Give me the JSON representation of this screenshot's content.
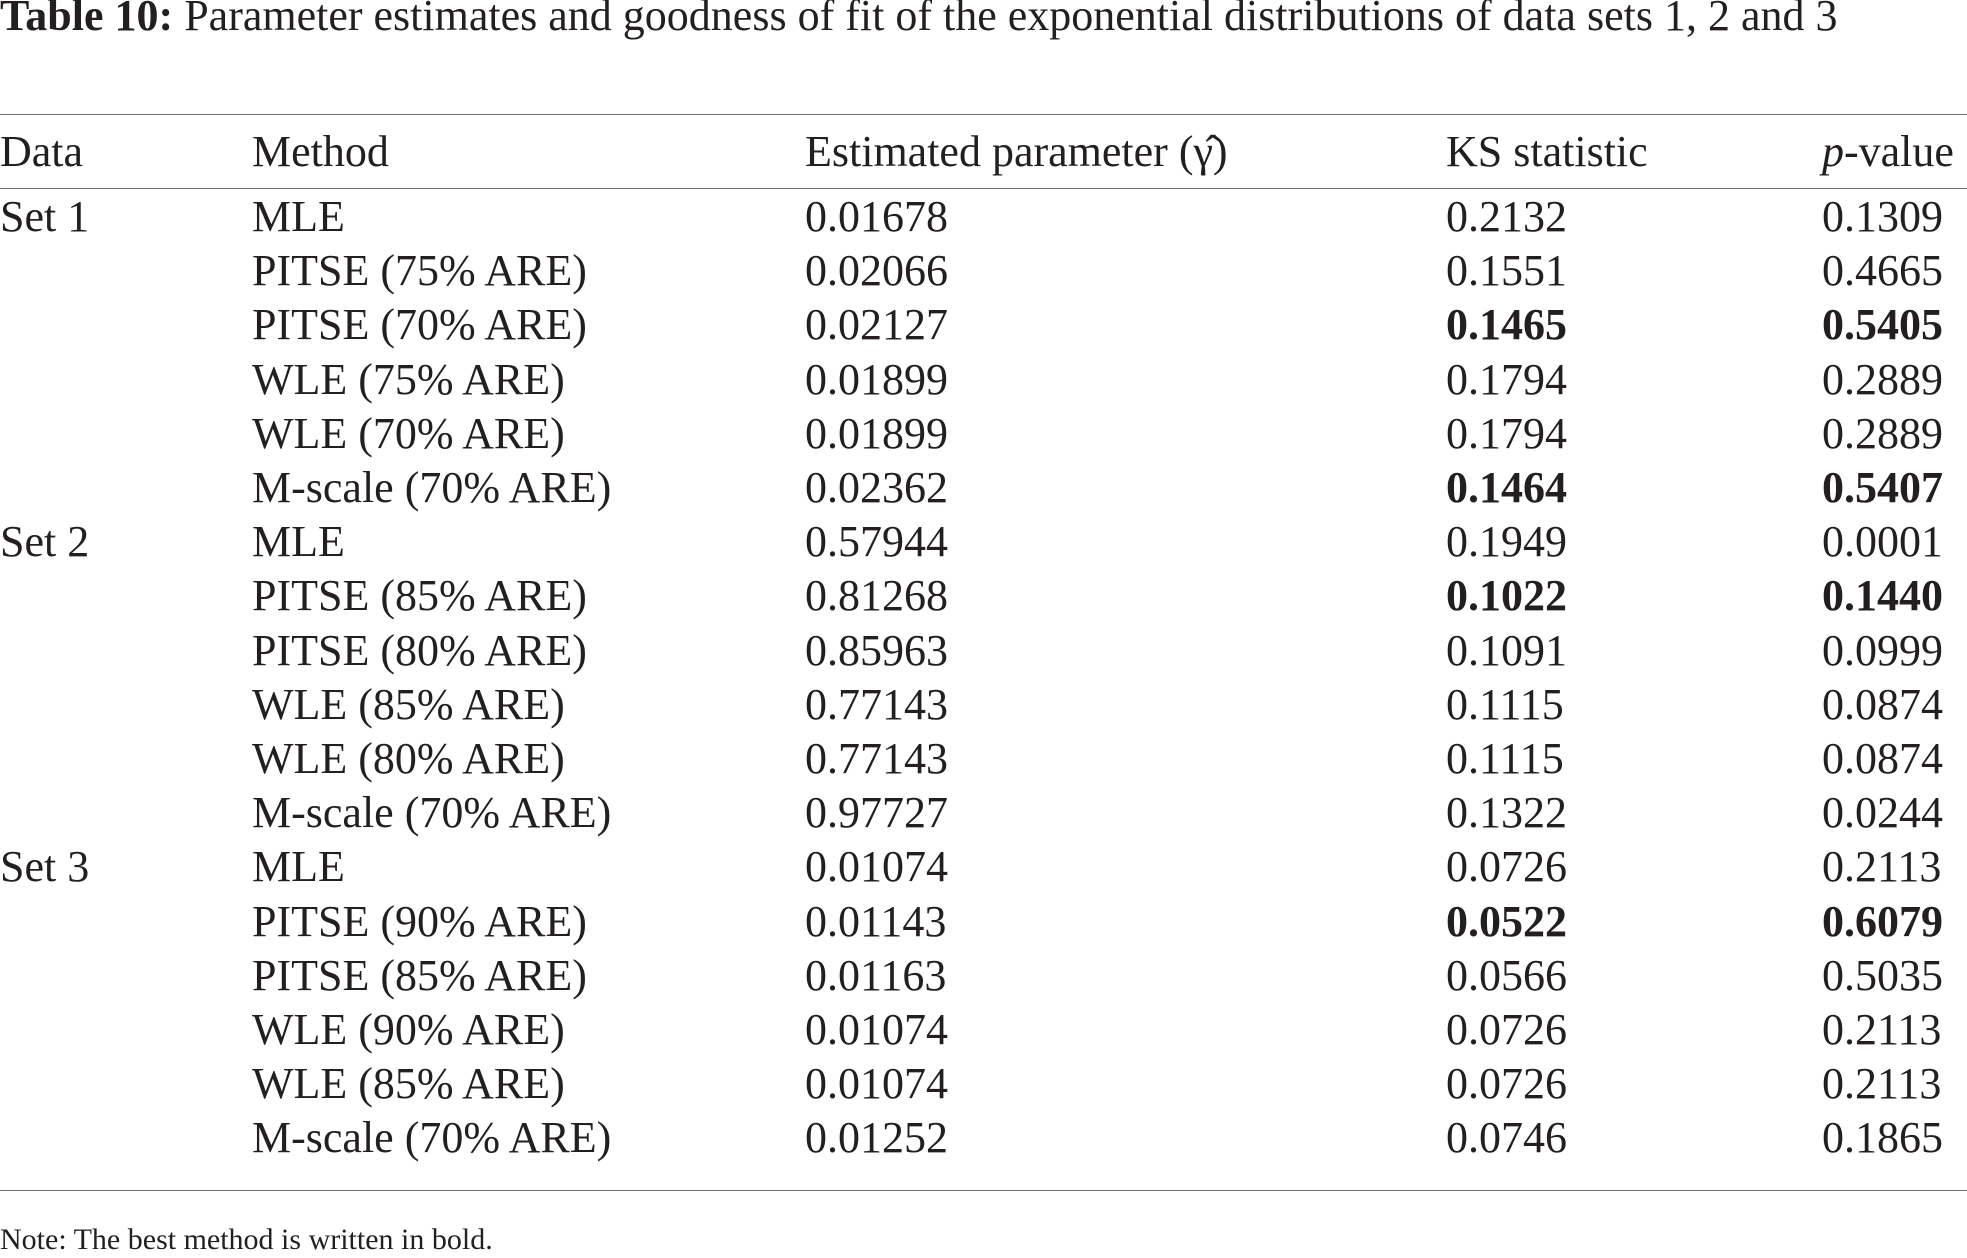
{
  "caption": {
    "label": "Table 10:",
    "text": "Parameter estimates and goodness of fit of the exponential distributions of data sets 1, 2 and 3"
  },
  "headers": {
    "data": "Data",
    "method": "Method",
    "param": "Estimated parameter (γ̂)",
    "ks": "KS statistic",
    "p_italic": "p",
    "p_rest": "-value"
  },
  "rows": [
    {
      "data": "Set 1",
      "method": "MLE",
      "param": "0.01678",
      "ks": "0.2132",
      "p": "0.1309",
      "best": false
    },
    {
      "data": "",
      "method": "PITSE (75% ARE)",
      "param": "0.02066",
      "ks": "0.1551",
      "p": "0.4665",
      "best": false
    },
    {
      "data": "",
      "method": "PITSE (70% ARE)",
      "param": "0.02127",
      "ks": "0.1465",
      "p": "0.5405",
      "best": true
    },
    {
      "data": "",
      "method": "WLE (75% ARE)",
      "param": "0.01899",
      "ks": "0.1794",
      "p": "0.2889",
      "best": false
    },
    {
      "data": "",
      "method": "WLE (70% ARE)",
      "param": "0.01899",
      "ks": "0.1794",
      "p": "0.2889",
      "best": false
    },
    {
      "data": "",
      "method": "M-scale (70% ARE)",
      "param": "0.02362",
      "ks": "0.1464",
      "p": "0.5407",
      "best": true
    },
    {
      "data": "Set 2",
      "method": "MLE",
      "param": "0.57944",
      "ks": "0.1949",
      "p": "0.0001",
      "best": false
    },
    {
      "data": "",
      "method": "PITSE (85% ARE)",
      "param": "0.81268",
      "ks": "0.1022",
      "p": "0.1440",
      "best": true
    },
    {
      "data": "",
      "method": "PITSE (80% ARE)",
      "param": "0.85963",
      "ks": "0.1091",
      "p": "0.0999",
      "best": false
    },
    {
      "data": "",
      "method": "WLE (85% ARE)",
      "param": "0.77143",
      "ks": "0.1115",
      "p": "0.0874",
      "best": false
    },
    {
      "data": "",
      "method": "WLE (80% ARE)",
      "param": "0.77143",
      "ks": "0.1115",
      "p": "0.0874",
      "best": false
    },
    {
      "data": "",
      "method": "M-scale (70% ARE)",
      "param": "0.97727",
      "ks": "0.1322",
      "p": "0.0244",
      "best": false
    },
    {
      "data": "Set 3",
      "method": "MLE",
      "param": "0.01074",
      "ks": "0.0726",
      "p": "0.2113",
      "best": false
    },
    {
      "data": "",
      "method": "PITSE (90% ARE)",
      "param": "0.01143",
      "ks": "0.0522",
      "p": "0.6079",
      "best": true
    },
    {
      "data": "",
      "method": "PITSE (85% ARE)",
      "param": "0.01163",
      "ks": "0.0566",
      "p": "0.5035",
      "best": false
    },
    {
      "data": "",
      "method": "WLE (90% ARE)",
      "param": "0.01074",
      "ks": "0.0726",
      "p": "0.2113",
      "best": false
    },
    {
      "data": "",
      "method": "WLE (85% ARE)",
      "param": "0.01074",
      "ks": "0.0726",
      "p": "0.2113",
      "best": false
    },
    {
      "data": "",
      "method": "M-scale (70% ARE)",
      "param": "0.01252",
      "ks": "0.0746",
      "p": "0.1865",
      "best": false
    }
  ],
  "note": "Note: The best method is written in bold.",
  "colors": {
    "text": "#231f20",
    "rule": "#6d6e71"
  }
}
